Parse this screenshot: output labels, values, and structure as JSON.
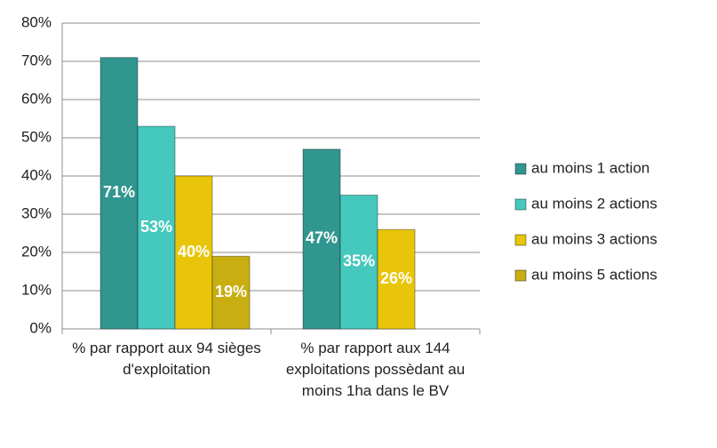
{
  "chart_data": {
    "type": "bar",
    "categories": [
      "% par rapport aux 94 sièges d'exploitation",
      "% par rapport aux 144 exploitations possèdant au moins 1ha dans le BV"
    ],
    "series": [
      {
        "name": "au moins 1 action",
        "color": "#31968f",
        "values": [
          71,
          47
        ],
        "value_labels": [
          "71%",
          "47%"
        ]
      },
      {
        "name": "au moins 2 actions",
        "color": "#45c8bd",
        "values": [
          53,
          35
        ],
        "value_labels": [
          "53%",
          "35%"
        ]
      },
      {
        "name": "au moins 3 actions",
        "color": "#e9c509",
        "values": [
          40,
          26
        ],
        "value_labels": [
          "40%",
          "26%"
        ]
      },
      {
        "name": "au moins 5 actions",
        "color": "#c9ae12",
        "values": [
          19,
          null
        ],
        "value_labels": [
          "19%",
          null
        ]
      }
    ],
    "ylim": [
      0,
      80
    ],
    "yticks": [
      {
        "value": 0,
        "label": "0%"
      },
      {
        "value": 10,
        "label": "10%"
      },
      {
        "value": 20,
        "label": "20%"
      },
      {
        "value": 30,
        "label": "30%"
      },
      {
        "value": 40,
        "label": "40%"
      },
      {
        "value": 50,
        "label": "50%"
      },
      {
        "value": 60,
        "label": "60%"
      },
      {
        "value": 70,
        "label": "70%"
      },
      {
        "value": 80,
        "label": "80%"
      }
    ],
    "grid": true,
    "legend": "right"
  }
}
